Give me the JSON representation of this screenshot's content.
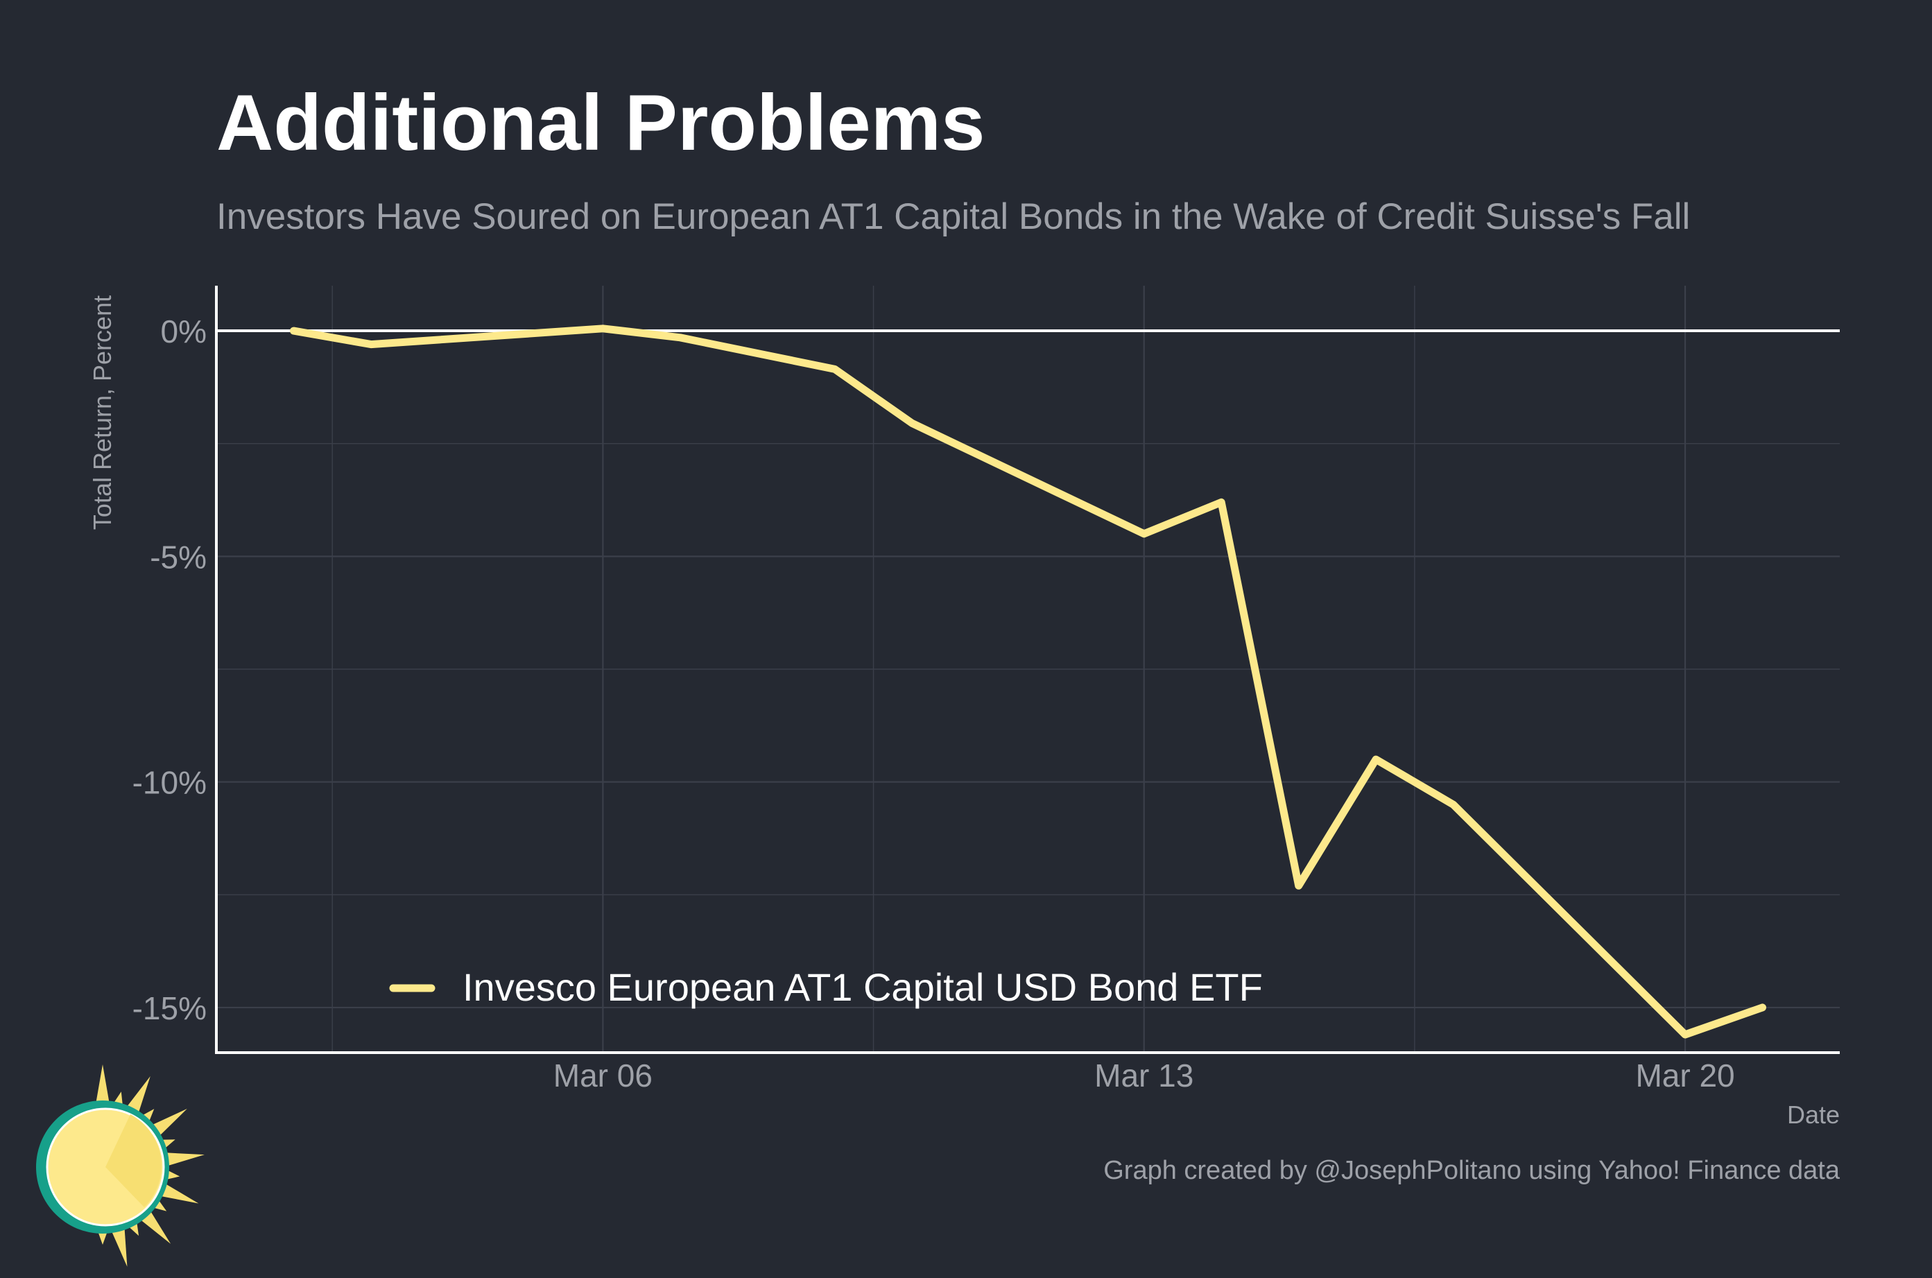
{
  "colors": {
    "background": "#252932",
    "grid": "#3b3f4a",
    "axis": "#ffffff",
    "series": "#fde98c",
    "muted_text": "#9ea1a8",
    "logo_ring": "#17a08a",
    "logo_sun": "#f7df72",
    "logo_sun_light": "#fde98c"
  },
  "logo": {
    "icon": "sun-logo-icon"
  },
  "caption": "Graph created by @JosephPolitano using Yahoo! Finance data",
  "chart_data": {
    "type": "line",
    "title": "Additional Problems",
    "subtitle": "Investors Have Soured on European AT1 Capital Bonds in the Wake of Credit Suisse's Fall",
    "xlabel": "Date",
    "ylabel": "Total Return, Percent",
    "x_tick_labels": [
      "Mar 06",
      "Mar 13",
      "Mar 20"
    ],
    "x_ticks": [
      "2023-03-06",
      "2023-03-13",
      "2023-03-20"
    ],
    "y_tick_labels": [
      "0%",
      "-5%",
      "-10%",
      "-15%"
    ],
    "y_ticks": [
      0,
      -5,
      -10,
      -15
    ],
    "xlim": [
      "2023-03-01",
      "2023-03-22"
    ],
    "ylim": [
      -16,
      1
    ],
    "grid": true,
    "legend_position": "bottom-left inside",
    "series": [
      {
        "name": "Invesco European AT1 Capital USD Bond ETF",
        "x": [
          "2023-03-02",
          "2023-03-03",
          "2023-03-06",
          "2023-03-07",
          "2023-03-09",
          "2023-03-10",
          "2023-03-13",
          "2023-03-14",
          "2023-03-15",
          "2023-03-16",
          "2023-03-17",
          "2023-03-20",
          "2023-03-21"
        ],
        "y": [
          0.0,
          -0.3,
          0.05,
          -0.15,
          -0.85,
          -2.05,
          -4.5,
          -3.8,
          -12.3,
          -9.5,
          -10.5,
          -15.6,
          -15.0
        ]
      }
    ]
  }
}
